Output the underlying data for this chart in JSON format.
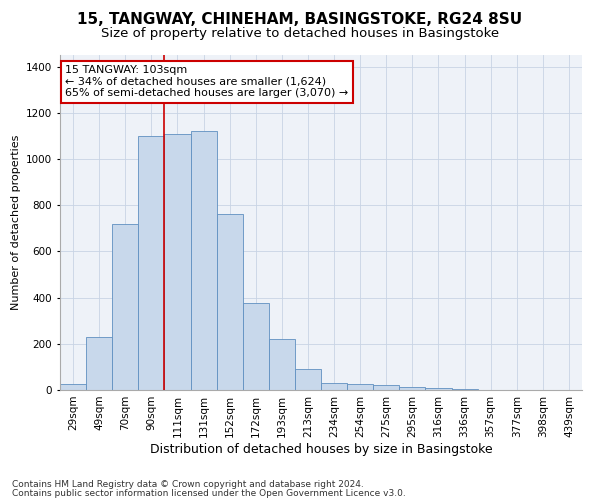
{
  "title1": "15, TANGWAY, CHINEHAM, BASINGSTOKE, RG24 8SU",
  "title2": "Size of property relative to detached houses in Basingstoke",
  "xlabel": "Distribution of detached houses by size in Basingstoke",
  "ylabel": "Number of detached properties",
  "categories": [
    "29sqm",
    "49sqm",
    "70sqm",
    "90sqm",
    "111sqm",
    "131sqm",
    "152sqm",
    "172sqm",
    "193sqm",
    "213sqm",
    "234sqm",
    "254sqm",
    "275sqm",
    "295sqm",
    "316sqm",
    "336sqm",
    "357sqm",
    "377sqm",
    "398sqm",
    "439sqm"
  ],
  "values": [
    25,
    230,
    720,
    1100,
    1110,
    1120,
    760,
    378,
    220,
    90,
    30,
    25,
    20,
    15,
    10,
    5,
    2,
    1,
    0,
    0
  ],
  "bar_color": "#c8d8eb",
  "bar_edge_color": "#6090c0",
  "grid_color": "#c8d4e4",
  "bg_color": "#eef2f8",
  "vline_color": "#cc0000",
  "annotation_text": "15 TANGWAY: 103sqm\n← 34% of detached houses are smaller (1,624)\n65% of semi-detached houses are larger (3,070) →",
  "annotation_box_color": "#ffffff",
  "annotation_box_edge": "#cc0000",
  "footnote1": "Contains HM Land Registry data © Crown copyright and database right 2024.",
  "footnote2": "Contains public sector information licensed under the Open Government Licence v3.0.",
  "ylim": [
    0,
    1450
  ],
  "title1_fontsize": 11,
  "title2_fontsize": 9.5,
  "xlabel_fontsize": 9,
  "ylabel_fontsize": 8,
  "tick_fontsize": 7.5,
  "annotation_fontsize": 8,
  "footnote_fontsize": 6.5
}
